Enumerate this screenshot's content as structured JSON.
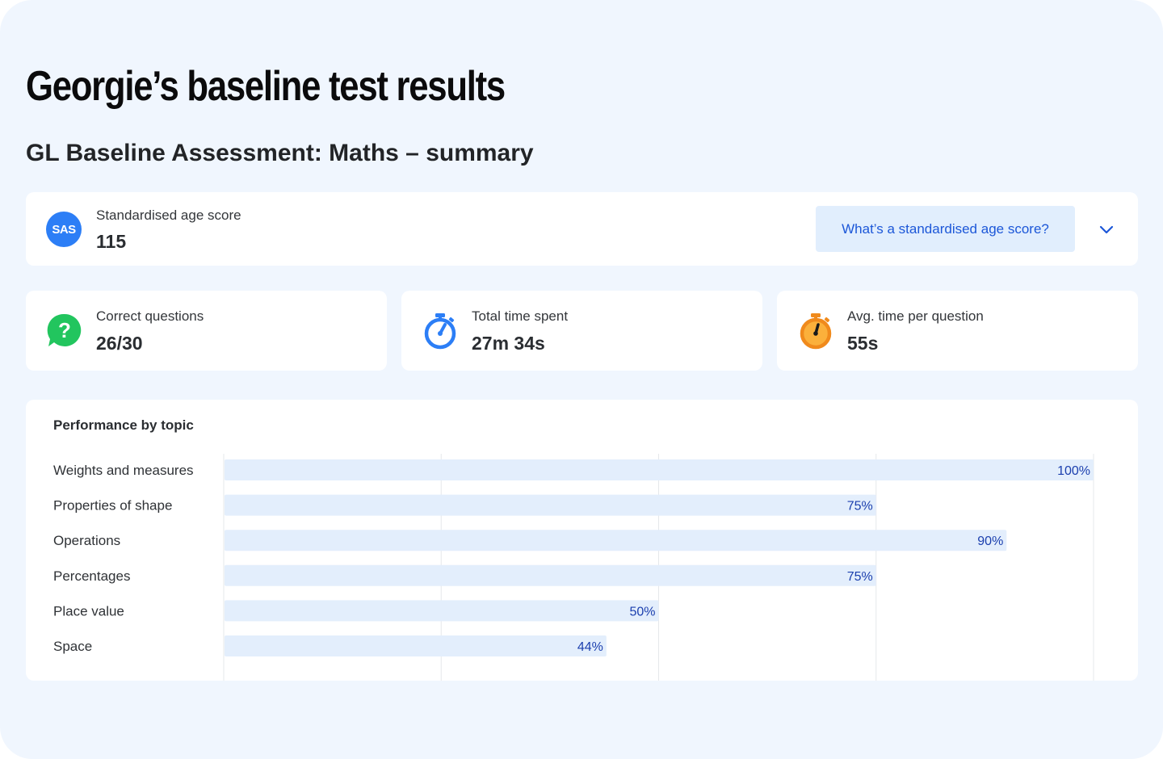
{
  "page": {
    "title": "Georgie’s baseline test results",
    "subtitle": "GL Baseline Assessment: Maths – summary"
  },
  "sas": {
    "badge": "SAS",
    "label": "Standardised age score",
    "value": "115",
    "info_button": "What’s a standardised age score?",
    "expand_icon": "chevron-down-icon"
  },
  "stats": [
    {
      "icon": "question-bubble-icon",
      "color": "#22c55e",
      "label": "Correct questions",
      "value": "26/30"
    },
    {
      "icon": "stopwatch-icon",
      "color": "#2c7ef6",
      "label": "Total time spent",
      "value": "27m 34s"
    },
    {
      "icon": "stopwatch-icon",
      "color": "#f7931e",
      "label": "Avg. time per question",
      "value": "55s"
    }
  ],
  "chart_title": "Performance by topic",
  "chart_data": {
    "type": "bar",
    "orientation": "horizontal",
    "title": "Performance by topic",
    "categories": [
      "Weights and measures",
      "Properties of shape",
      "Operations",
      "Percentages",
      "Place value",
      "Space"
    ],
    "values": [
      100,
      75,
      90,
      75,
      50,
      44
    ],
    "value_labels": [
      "100%",
      "75%",
      "90%",
      "75%",
      "50%",
      "44%"
    ],
    "xlim": [
      0,
      100
    ],
    "grid": true,
    "bar_color": "#e3eefc",
    "label_color": "#1b3fae"
  }
}
